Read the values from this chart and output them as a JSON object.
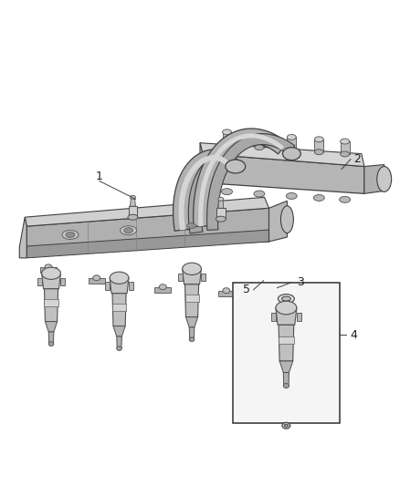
{
  "background_color": "#ffffff",
  "fig_width": 4.38,
  "fig_height": 5.33,
  "dpi": 100,
  "line_color": "#404040",
  "rail_dark": "#888888",
  "rail_mid": "#aaaaaa",
  "rail_light": "#cccccc",
  "rail_face": "#b8b8b8",
  "tube_dark": "#909090",
  "tube_mid": "#b0b0b0",
  "clip_color": "#999999",
  "injector_body": "#a0a0a0",
  "injector_dark": "#787878",
  "box_bg": "#f5f5f5"
}
